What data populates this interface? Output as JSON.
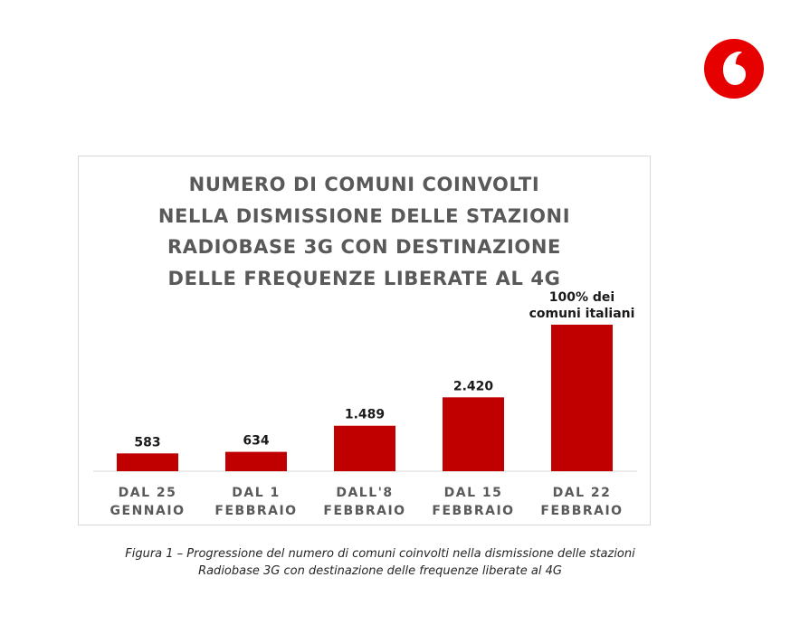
{
  "logo": {
    "name": "vodafone-logo",
    "color": "#e60000"
  },
  "chart_data": {
    "type": "bar",
    "title_lines": [
      "NUMERO DI COMUNI COINVOLTI",
      "NELLA DISMISSIONE DELLE STAZIONI",
      "RADIOBASE 3G CON DESTINAZIONE",
      "DELLE FREQUENZE LIBERATE AL 4G"
    ],
    "categories": [
      [
        "DAL 25",
        "GENNAIO"
      ],
      [
        "DAL 1",
        "FEBBRAIO"
      ],
      [
        "DALL'8",
        "FEBBRAIO"
      ],
      [
        "DAL 15",
        "FEBBRAIO"
      ],
      [
        "DAL 22",
        "FEBBRAIO"
      ]
    ],
    "values": [
      583,
      634,
      1489,
      2420,
      4800
    ],
    "data_labels": [
      [
        "583"
      ],
      [
        "634"
      ],
      [
        "1.489"
      ],
      [
        "2.420"
      ],
      [
        "100% dei",
        "comuni italiani"
      ]
    ],
    "ylim": [
      0,
      4800
    ],
    "bar_color": "#c00000",
    "grid": false,
    "legend": "none"
  },
  "caption": {
    "line1": "Figura 1 – Progressione del numero di comuni coinvolti nella dismissione delle stazioni",
    "line2": "Radiobase 3G con destinazione delle frequenze liberate al 4G"
  }
}
